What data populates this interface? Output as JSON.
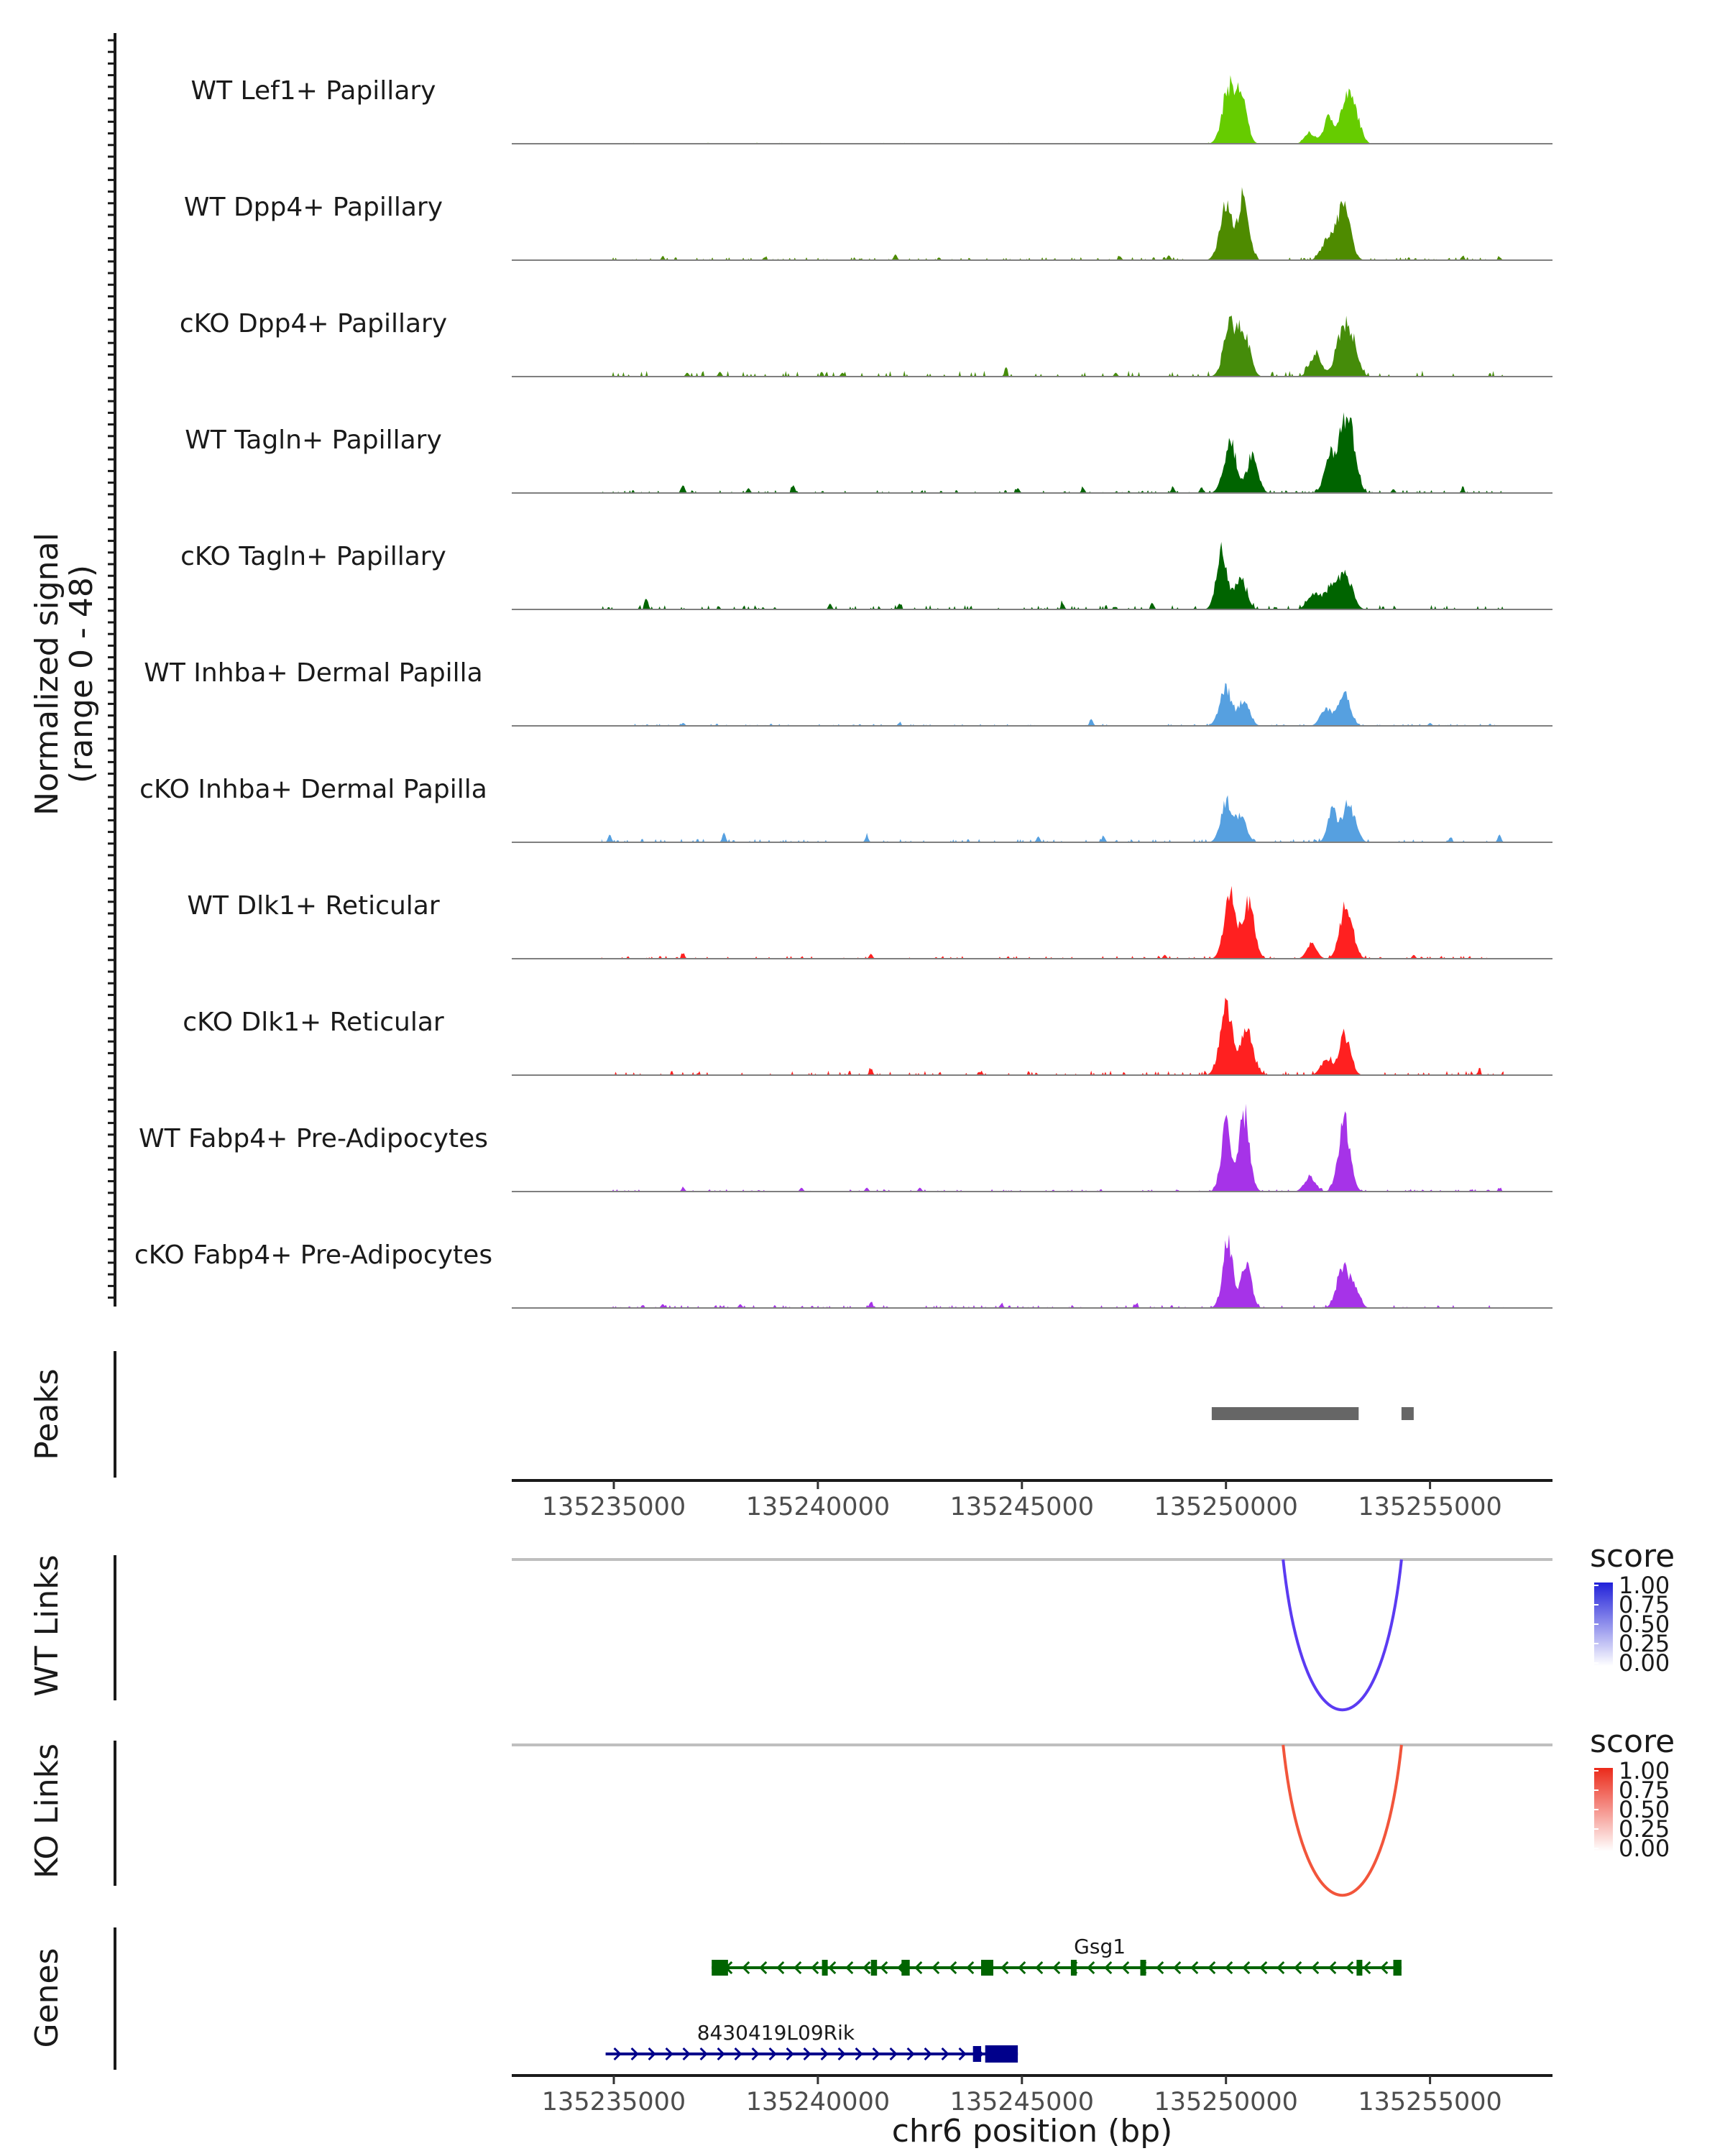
{
  "chart_data": {
    "type": "area",
    "region": {
      "chromosome": "chr6",
      "start": 135232500,
      "end": 135258000
    },
    "y_axis_label": [
      "Normalized signal",
      "(range 0 - 48)"
    ],
    "y_range": [
      0,
      48
    ],
    "x_axis_label": "chr6 position (bp)",
    "x_ticks": [
      135235000,
      135240000,
      135245000,
      135250000,
      135255000
    ],
    "x_tick_labels": [
      "135235000",
      "135240000",
      "135245000",
      "135250000",
      "135255000"
    ],
    "coverage_tracks": [
      {
        "name": "WT Lef1+ Papillary",
        "color": "#66CC00",
        "baseline_noise": 0.3,
        "peaks": [
          [
            135250060,
            150,
            30
          ],
          [
            135250380,
            130,
            26
          ],
          [
            135252050,
            120,
            6
          ],
          [
            135252520,
            130,
            14
          ],
          [
            135252950,
            150,
            24
          ],
          [
            135253200,
            120,
            12
          ]
        ],
        "blips": []
      },
      {
        "name": "WT Dpp4+ Papillary",
        "color": "#4E8B00",
        "baseline_noise": 1.0,
        "peaks": [
          [
            135250000,
            150,
            30
          ],
          [
            135250430,
            130,
            33
          ],
          [
            135252400,
            120,
            7
          ],
          [
            135252900,
            150,
            30
          ],
          [
            135252600,
            120,
            10
          ]
        ],
        "blips": [
          [
            135241900,
            3
          ],
          [
            135236200,
            1.5
          ],
          [
            135238700,
            1.5
          ],
          [
            135247400,
            2
          ],
          [
            135248600,
            2.5
          ],
          [
            135255800,
            2
          ],
          [
            135256700,
            1.5
          ]
        ]
      },
      {
        "name": "cKO Dpp4+ Papillary",
        "color": "#458C0A",
        "baseline_noise": 2.0,
        "peaks": [
          [
            135250100,
            150,
            28
          ],
          [
            135250450,
            140,
            22
          ],
          [
            135252200,
            140,
            12
          ],
          [
            135252850,
            160,
            24
          ],
          [
            135253100,
            140,
            16
          ]
        ],
        "blips": [
          [
            135236800,
            2
          ],
          [
            135237600,
            2.5
          ],
          [
            135240600,
            2
          ],
          [
            135244600,
            2.5
          ],
          [
            135247300,
            2
          ]
        ]
      },
      {
        "name": "WT Tagln+ Papillary",
        "color": "#006400",
        "baseline_noise": 1.0,
        "peaks": [
          [
            135250100,
            150,
            28
          ],
          [
            135250650,
            130,
            22
          ],
          [
            135252550,
            130,
            22
          ],
          [
            135252900,
            140,
            34
          ],
          [
            135253100,
            130,
            20
          ]
        ],
        "blips": [
          [
            135236700,
            4
          ],
          [
            135239400,
            4
          ],
          [
            135238300,
            2.5
          ],
          [
            135244900,
            2.5
          ],
          [
            135246500,
            2.5
          ],
          [
            135248700,
            3
          ],
          [
            135249400,
            3
          ],
          [
            135255800,
            2
          ],
          [
            135254100,
            2
          ]
        ]
      },
      {
        "name": "cKO Tagln+ Papillary",
        "color": "#006400",
        "baseline_noise": 1.5,
        "peaks": [
          [
            135249900,
            130,
            32
          ],
          [
            135250350,
            140,
            18
          ],
          [
            135252600,
            150,
            14
          ],
          [
            135252950,
            150,
            18
          ],
          [
            135252150,
            150,
            8
          ]
        ],
        "blips": [
          [
            135235800,
            6
          ],
          [
            135240300,
            3
          ],
          [
            135242000,
            3
          ],
          [
            135246000,
            3
          ],
          [
            135248200,
            3
          ]
        ]
      },
      {
        "name": "WT Inhba+ Dermal Papilla",
        "color": "#56A0E0",
        "baseline_noise": 0.7,
        "peaks": [
          [
            135250000,
            150,
            20
          ],
          [
            135250450,
            130,
            14
          ],
          [
            135252450,
            130,
            10
          ],
          [
            135252900,
            140,
            18
          ]
        ],
        "blips": [
          [
            135246700,
            3.5
          ],
          [
            135236700,
            1.5
          ],
          [
            135242000,
            1.5
          ],
          [
            135255000,
            1.5
          ]
        ]
      },
      {
        "name": "cKO Inhba+ Dermal Papilla",
        "color": "#56A0E0",
        "baseline_noise": 1.2,
        "peaks": [
          [
            135250000,
            130,
            22
          ],
          [
            135250350,
            140,
            14
          ],
          [
            135252600,
            110,
            18
          ],
          [
            135252950,
            110,
            18
          ],
          [
            135253150,
            110,
            10
          ]
        ],
        "blips": [
          [
            135234900,
            4
          ],
          [
            135237700,
            5
          ],
          [
            135241200,
            3
          ],
          [
            135245400,
            3
          ],
          [
            135247000,
            3
          ],
          [
            135256700,
            4
          ],
          [
            135255500,
            2.5
          ]
        ]
      },
      {
        "name": "WT Dlk1+ Reticular",
        "color": "#FF2020",
        "baseline_noise": 1.0,
        "peaks": [
          [
            135250100,
            140,
            38
          ],
          [
            135250550,
            140,
            30
          ],
          [
            135252950,
            150,
            30
          ],
          [
            135252100,
            120,
            8
          ]
        ],
        "blips": [
          [
            135236700,
            2.5
          ],
          [
            135241300,
            2.5
          ],
          [
            135248500,
            2
          ],
          [
            135254600,
            2
          ]
        ]
      },
      {
        "name": "cKO Dlk1+ Reticular",
        "color": "#FF2020",
        "baseline_noise": 1.5,
        "peaks": [
          [
            135250000,
            150,
            36
          ],
          [
            135250500,
            160,
            24
          ],
          [
            135252900,
            140,
            22
          ],
          [
            135252450,
            130,
            8
          ]
        ],
        "blips": [
          [
            135241300,
            3
          ],
          [
            135244000,
            1.5
          ],
          [
            135256200,
            2
          ]
        ]
      },
      {
        "name": "WT Fabp4+ Pre-Adipocytes",
        "color": "#A633E8",
        "baseline_noise": 0.8,
        "peaks": [
          [
            135250000,
            120,
            36
          ],
          [
            135250450,
            130,
            42
          ],
          [
            135252900,
            140,
            38
          ],
          [
            135252050,
            130,
            8
          ]
        ],
        "blips": [
          [
            135236700,
            2
          ],
          [
            135239600,
            2
          ],
          [
            135241200,
            2
          ],
          [
            135242500,
            2
          ],
          [
            135256700,
            1.5
          ]
        ]
      },
      {
        "name": "cKO Fabp4+ Pre-Adipocytes",
        "color": "#A633E8",
        "baseline_noise": 1.0,
        "peaks": [
          [
            135250050,
            130,
            36
          ],
          [
            135250500,
            120,
            24
          ],
          [
            135252850,
            140,
            22
          ],
          [
            135253150,
            120,
            12
          ]
        ],
        "blips": [
          [
            135236200,
            2
          ],
          [
            135238100,
            2
          ],
          [
            135241300,
            3
          ],
          [
            135244500,
            2
          ],
          [
            135247800,
            2
          ]
        ]
      }
    ],
    "peaks_track": {
      "label": "Peaks",
      "color": "#666666",
      "regions": [
        [
          135249650,
          135253250
        ],
        [
          135254300,
          135254600
        ]
      ]
    },
    "link_tracks": [
      {
        "label": "WT Links",
        "arc_start": 135251400,
        "arc_end": 135254300,
        "score": 0.75,
        "color": "#5B3BF2",
        "legend": {
          "title": "score",
          "ticks": [
            "1.00",
            "0.75",
            "0.50",
            "0.25",
            "0.00"
          ],
          "low": "#ffffff",
          "high": "#2121D9"
        }
      },
      {
        "label": "KO Links",
        "arc_start": 135251400,
        "arc_end": 135254300,
        "score": 0.75,
        "color": "#F2553B",
        "legend": {
          "title": "score",
          "ticks": [
            "1.00",
            "0.75",
            "0.50",
            "0.25",
            "0.00"
          ],
          "low": "#ffffff",
          "high": "#EB2A1A"
        }
      }
    ],
    "genes_track": {
      "label": "Genes",
      "genes": [
        {
          "name": "Gsg1",
          "strand": "-",
          "start": 135237400,
          "end": 135254300,
          "color": "#006400",
          "exons": [
            [
              135237400,
              135237800
            ],
            [
              135240100,
              135240200
            ],
            [
              135241300,
              135241450
            ],
            [
              135242050,
              135242250
            ],
            [
              135244000,
              135244300
            ],
            [
              135246200,
              135246300
            ],
            [
              135247900,
              135248000
            ],
            [
              135253200,
              135253300
            ],
            [
              135254100,
              135254300
            ]
          ]
        },
        {
          "name": "8430419L09Rik",
          "strand": "+",
          "start": 135234800,
          "end": 135244900,
          "color": "#00008B",
          "exons": [
            [
              135243800,
              135244000
            ],
            [
              135244100,
              135244900
            ]
          ]
        }
      ]
    }
  }
}
